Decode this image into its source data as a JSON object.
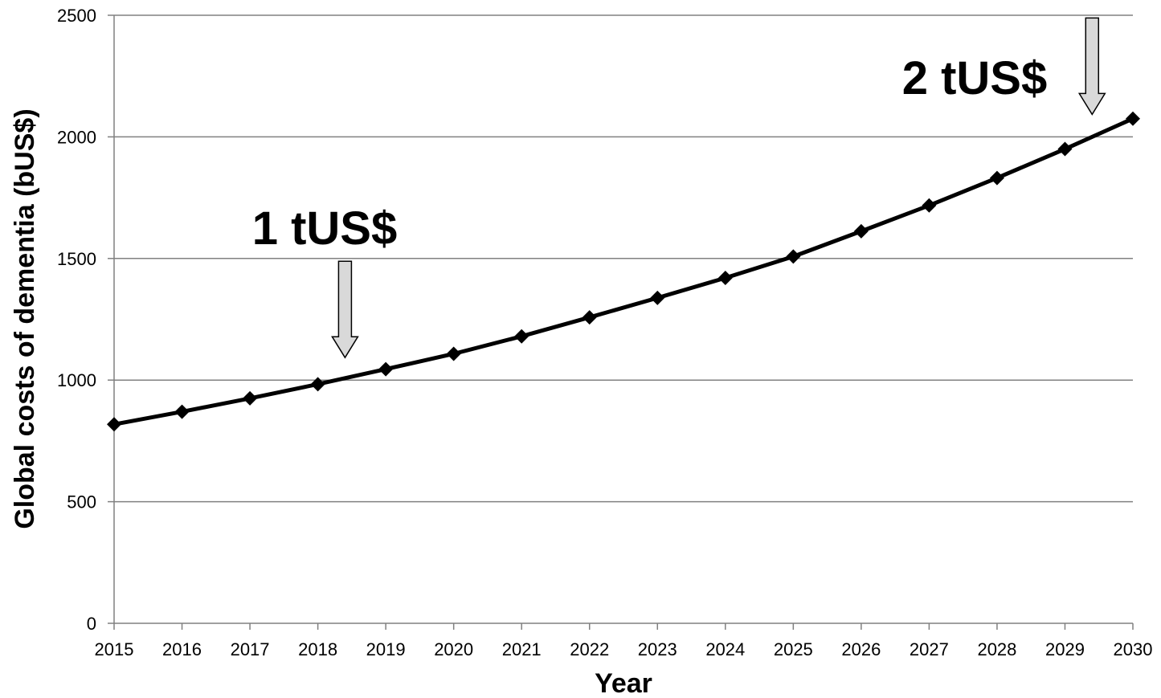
{
  "chart_data": {
    "type": "line",
    "title": "",
    "xlabel": "Year",
    "ylabel": "Global costs of dementia (bUS$)",
    "x": [
      2015,
      2016,
      2017,
      2018,
      2019,
      2020,
      2021,
      2022,
      2023,
      2024,
      2025,
      2026,
      2027,
      2028,
      2029,
      2030
    ],
    "series": [
      {
        "values": [
          818,
          870,
          925,
          983,
          1045,
          1108,
          1180,
          1258,
          1338,
          1420,
          1508,
          1612,
          1718,
          1831,
          1950,
          2075
        ]
      }
    ],
    "ylim": [
      0,
      2500
    ],
    "xlim": [
      2015,
      2030
    ],
    "yticks": [
      "0",
      "500",
      "1000",
      "1500",
      "2000",
      "2500"
    ],
    "xticks": [
      "2015",
      "2016",
      "2017",
      "2018",
      "2019",
      "2020",
      "2021",
      "2022",
      "2023",
      "2024",
      "2025",
      "2026",
      "2027",
      "2028",
      "2029",
      "2030"
    ],
    "grid": "horizontal",
    "line_color": "#000000",
    "grid_color": "#808080",
    "marker": "diamond",
    "annotations": [
      {
        "text": "1 tUS$",
        "x": 2018.4,
        "y": 1000,
        "arrow_color": "#d9d9d9"
      },
      {
        "text": "2 tUS$",
        "x": 2029.4,
        "y": 2000,
        "arrow_color": "#d9d9d9"
      }
    ]
  }
}
